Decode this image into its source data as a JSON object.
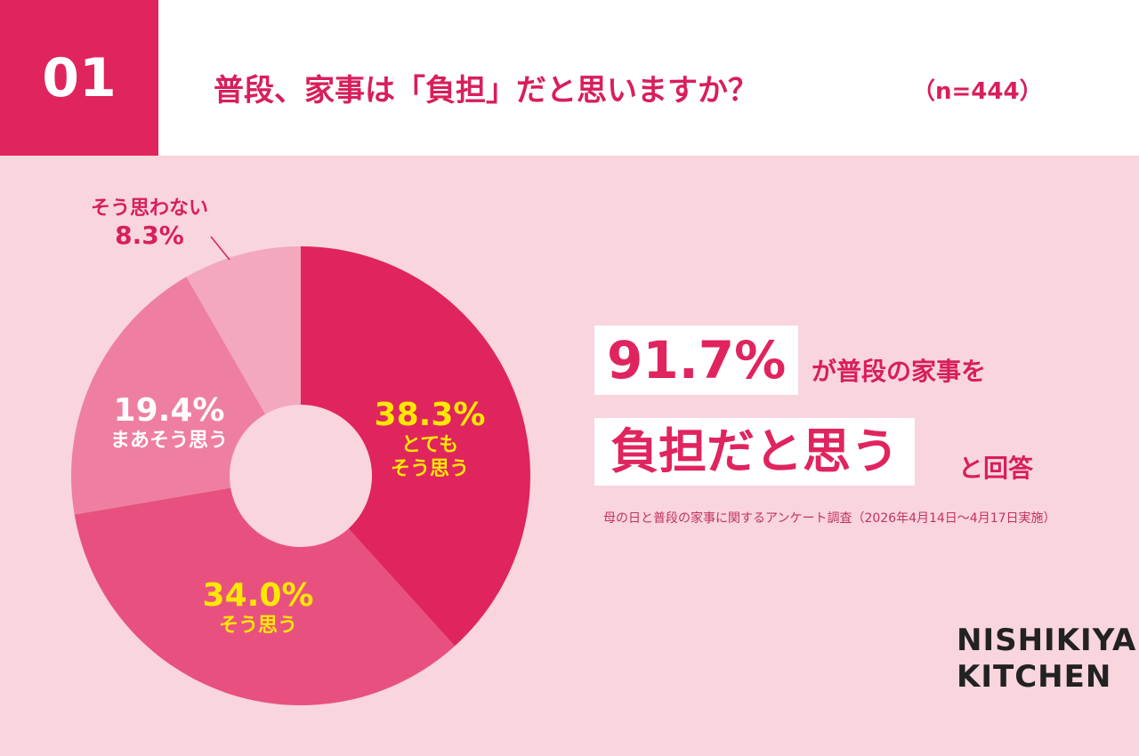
{
  "header": {
    "number": "01",
    "title": "普段、家事は「負担」だと思いますか？",
    "n": "（n=444）"
  },
  "chart_data": {
    "type": "donut",
    "categories": [
      "とても\nそう思う",
      "そう思う",
      "まあそう思う",
      "そう思わない"
    ],
    "values": [
      38.3,
      34.0,
      19.4,
      8.3
    ],
    "value_labels": [
      "38.3%",
      "34.0%",
      "19.4%",
      "8.3%"
    ],
    "colors": [
      "#e0245e",
      "#e8517f",
      "#ee7fa0",
      "#f3a8bd"
    ],
    "label_colors": [
      "#ffe800",
      "#ffe800",
      "#ffffff",
      "#d81f5a"
    ]
  },
  "summary": {
    "highlight": "91.7%",
    "text1": "が普段の家事を",
    "highlight2": "負担だと思う",
    "text2": "と回答"
  },
  "footnote": "母の日と普段の家事に関するアンケート調査（2026年4月14日〜4月17日実施）",
  "logo": "NISHIKIYA\nKITCHEN"
}
